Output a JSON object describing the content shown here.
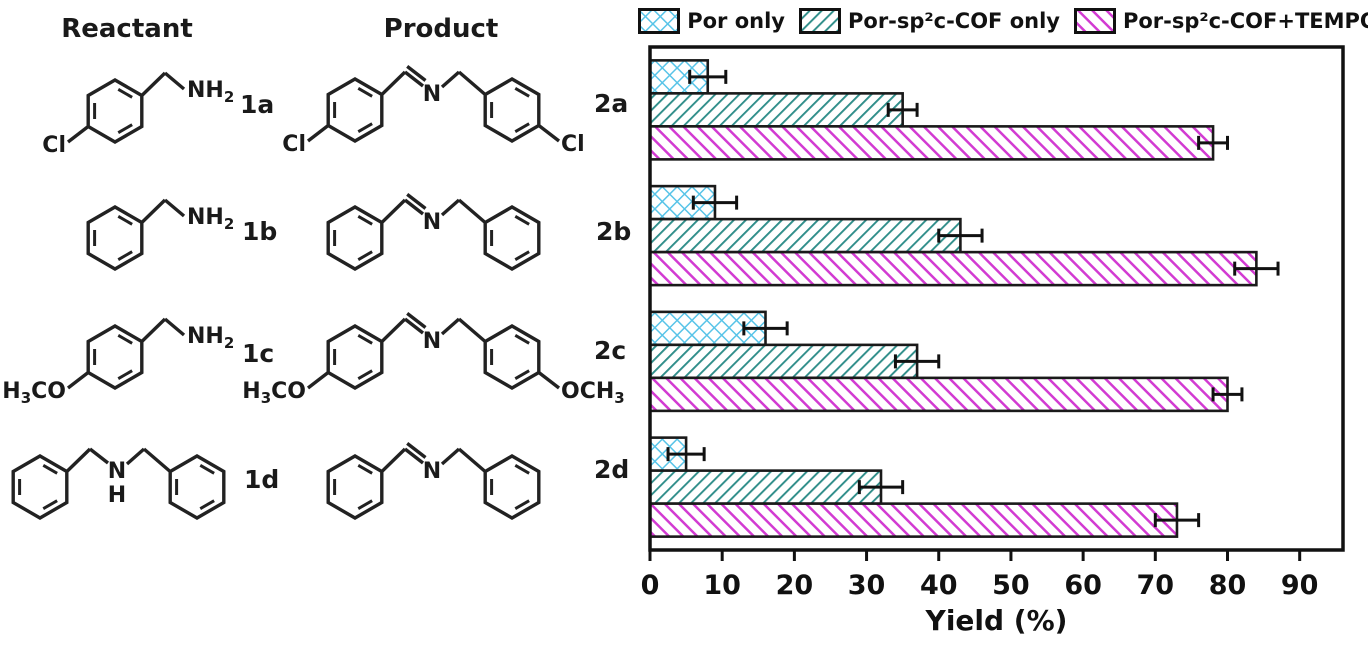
{
  "figure": {
    "headers": {
      "reactant": "Reactant",
      "product": "Product"
    },
    "atom_labels": {
      "amine": "NH2",
      "imine_nitrogen": "N",
      "secondary_amine_n": "N",
      "secondary_amine_h": "H"
    },
    "rows": [
      {
        "reactant_label": "1a",
        "product_label": "2a",
        "reactant": {
          "type": "amine",
          "para": "Cl"
        },
        "product": {
          "type": "imine",
          "para_left": "Cl",
          "para_right": "Cl"
        }
      },
      {
        "reactant_label": "1b",
        "product_label": "2b",
        "reactant": {
          "type": "amine",
          "para": null
        },
        "product": {
          "type": "imine",
          "para_left": null,
          "para_right": null
        }
      },
      {
        "reactant_label": "1c",
        "product_label": "2c",
        "reactant": {
          "type": "amine",
          "para": "H3CO"
        },
        "product": {
          "type": "imine",
          "para_left": "H3CO",
          "para_right": "OCH3"
        }
      },
      {
        "reactant_label": "1d",
        "product_label": "2d",
        "reactant": {
          "type": "dibenzylamine",
          "para": null
        },
        "product": {
          "type": "imine",
          "para_left": null,
          "para_right": null
        }
      }
    ]
  },
  "chart_data": {
    "type": "bar",
    "orientation": "horizontal",
    "categories": [
      "2a",
      "2b",
      "2c",
      "2d"
    ],
    "series": [
      {
        "name": "Por only",
        "color": "#58c4e8",
        "hatch": "crosshatch",
        "values": [
          8,
          9,
          16,
          5
        ],
        "errors": [
          2.5,
          3,
          3,
          2.5
        ]
      },
      {
        "name": "Por-sp²c-COF only",
        "color": "#2e8d89",
        "hatch": "diagonal-up",
        "values": [
          35,
          43,
          37,
          32
        ],
        "errors": [
          2,
          3,
          3,
          3
        ]
      },
      {
        "name": "Por-sp²c-COF+TEMPO",
        "color": "#d23bd2",
        "hatch": "diagonal-down",
        "values": [
          78,
          84,
          80,
          73
        ],
        "errors": [
          2,
          3,
          2,
          3
        ]
      }
    ],
    "xlabel": "Yield (%)",
    "xlim": [
      0,
      96
    ],
    "xticks": [
      0,
      10,
      20,
      30,
      40,
      50,
      60,
      70,
      80,
      90
    ],
    "legend_position": "top",
    "grid": false,
    "axis_color": "#111111",
    "bar_edge_color": "#1a1a1a"
  }
}
